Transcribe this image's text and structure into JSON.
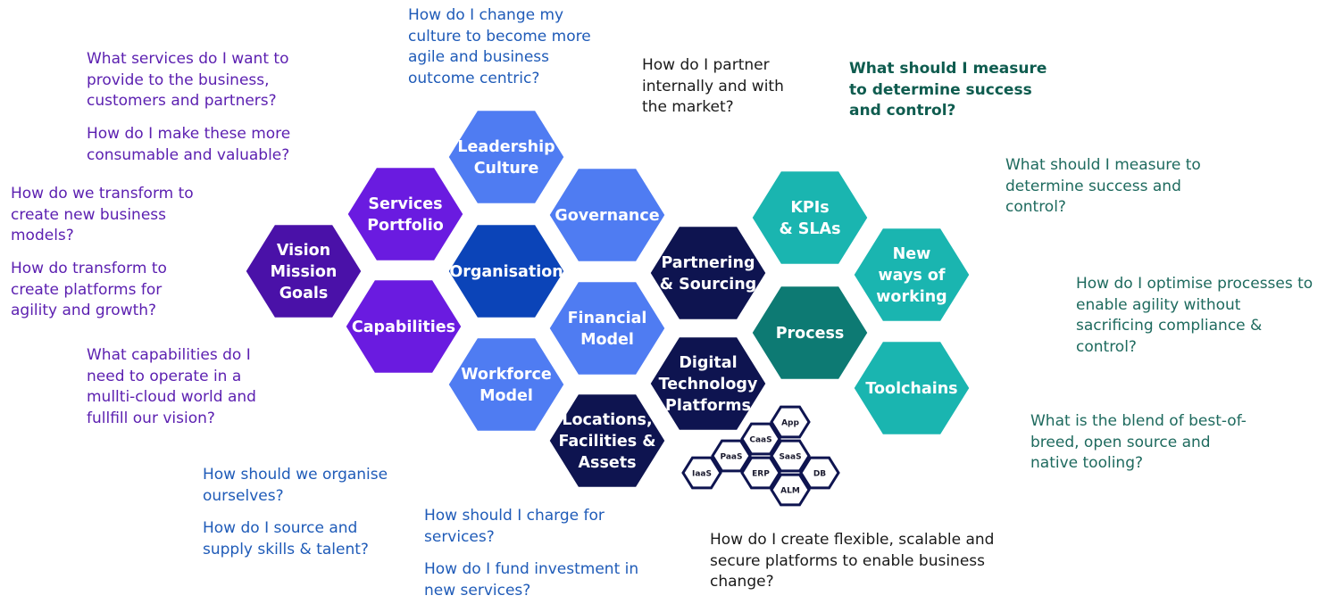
{
  "questions": {
    "services": [
      "What services do I want to",
      "provide to the business,",
      "customers and partners?"
    ],
    "consumable": [
      "How do I make these more",
      "consumable and valuable?"
    ],
    "transform_models": [
      "How do we transform to",
      "create new business",
      "models?"
    ],
    "transform_platforms": [
      "How do transform to",
      "create platforms for",
      "agility and growth?"
    ],
    "capabilities": [
      "What capabilities do I",
      "need to operate in a",
      "mullti-cloud world and",
      "fullfill our vision?"
    ],
    "culture": [
      "How do I change my",
      "culture to become more",
      "agile and business",
      "outcome centric?"
    ],
    "partner": [
      "How do I partner",
      "internally and with",
      "the market?"
    ],
    "measure_bold": [
      "What should I measure",
      "to determine success",
      "and control?"
    ],
    "measure": [
      "What should I measure to",
      "determine success and",
      "control?"
    ],
    "optimise": [
      "How do I optimise processes to",
      "enable agility without",
      "sacrificing compliance &",
      "control?"
    ],
    "blend": [
      "What is the blend of best-of-",
      "breed, open source and",
      "native tooling?"
    ],
    "organise": [
      "How should we organise",
      "ourselves?"
    ],
    "source": [
      "How do I source and",
      "supply skills & talent?"
    ],
    "charge": [
      "How should I charge for",
      "services?"
    ],
    "fund": [
      "How do I fund investment in",
      "new services?"
    ],
    "platforms": [
      "How do I create flexible, scalable and",
      "secure platforms to enable business",
      "change?"
    ]
  },
  "hexagons": [
    {
      "id": "vision",
      "lines": [
        "Vision",
        "Mission",
        "Goals"
      ],
      "color": "#4a11a8"
    },
    {
      "id": "services-portfolio",
      "lines": [
        "Services",
        "Portfolio"
      ],
      "color": "#6a1be0"
    },
    {
      "id": "capabilities",
      "lines": [
        "Capabilities"
      ],
      "color": "#6a1be0"
    },
    {
      "id": "leadership-culture",
      "lines": [
        "Leadership",
        "Culture"
      ],
      "color": "#4f7cf2"
    },
    {
      "id": "organisation",
      "lines": [
        "Organisation"
      ],
      "color": "#0b44b8"
    },
    {
      "id": "workforce-model",
      "lines": [
        "Workforce",
        "Model"
      ],
      "color": "#4f7cf2"
    },
    {
      "id": "governance",
      "lines": [
        "Governance"
      ],
      "color": "#4f7cf2"
    },
    {
      "id": "financial-model",
      "lines": [
        "Financial",
        "Model"
      ],
      "color": "#4f7cf2"
    },
    {
      "id": "locations",
      "lines": [
        "Locations,",
        "Facilities &",
        "Assets"
      ],
      "color": "#0e1450"
    },
    {
      "id": "partnering",
      "lines": [
        "Partnering",
        "& Sourcing"
      ],
      "color": "#0e1450"
    },
    {
      "id": "digital-platforms",
      "lines": [
        "Digital",
        "Technology",
        "Platforms"
      ],
      "color": "#0e1450"
    },
    {
      "id": "kpis",
      "lines": [
        "KPIs",
        "& SLAs"
      ],
      "color": "#1ab5b0"
    },
    {
      "id": "new-ways",
      "lines": [
        "New",
        "ways of",
        "working"
      ],
      "color": "#1ab5b0"
    },
    {
      "id": "process",
      "lines": [
        "Process"
      ],
      "color": "#0d7a73"
    },
    {
      "id": "toolchains",
      "lines": [
        "Toolchains"
      ],
      "color": "#1ab5b0"
    }
  ],
  "mini_hexagons": [
    "App",
    "CaaS",
    "PaaS",
    "SaaS",
    "IaaS",
    "ERP",
    "DB",
    "ALM"
  ]
}
